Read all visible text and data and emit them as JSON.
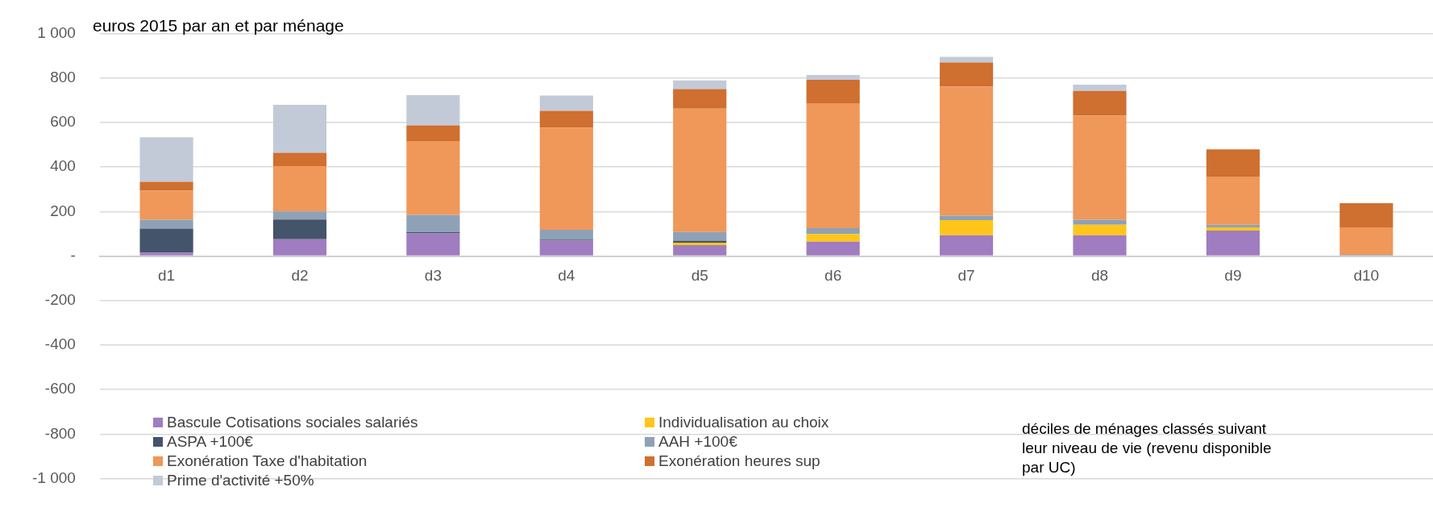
{
  "chart_data": {
    "type": "bar",
    "stacked": true,
    "ylabel": "euros 2015 par an et par ménage",
    "xlabel": "déciles de ménages classés suivant leur niveau de vie (revenu disponible par UC)",
    "categories": [
      "d1",
      "d2",
      "d3",
      "d4",
      "d5",
      "d6",
      "d7",
      "d8",
      "d9",
      "d10"
    ],
    "series": [
      {
        "name": "Bascule Cotisations sociales salariés",
        "color": "#a07cc0",
        "values": [
          15,
          75,
          101,
          69,
          49,
          64,
          93,
          93,
          114,
          0
        ]
      },
      {
        "name": "Individualisation au choix",
        "color": "#ffc519",
        "values": [
          0,
          0,
          0,
          0,
          11,
          35,
          68,
          47,
          15,
          0
        ]
      },
      {
        "name": "ASPA +100€",
        "color": "#44546a",
        "values": [
          108,
          89,
          6,
          4,
          9,
          0,
          0,
          0,
          0,
          0
        ]
      },
      {
        "name": "AAH +100€",
        "color": "#8fa1b6",
        "values": [
          40,
          36,
          78,
          45,
          39,
          26,
          20,
          23,
          11,
          5
        ]
      },
      {
        "name": "Exonération Taxe d'habitation",
        "color": "#f0975a",
        "values": [
          130,
          204,
          331,
          458,
          554,
          561,
          580,
          467,
          217,
          124
        ]
      },
      {
        "name": "Exonération heures sup",
        "color": "#cf6f30",
        "values": [
          40,
          60,
          71,
          76,
          88,
          105,
          108,
          112,
          122,
          108
        ]
      },
      {
        "name": "Prime d'activité +50%",
        "color": "#c2cad8",
        "values": [
          200,
          215,
          136,
          69,
          39,
          22,
          26,
          28,
          0,
          0
        ]
      }
    ],
    "ylim": [
      -1000,
      1000
    ],
    "yticks": [
      {
        "value": -1000,
        "label": "-1 000"
      },
      -800,
      -600,
      -400,
      -200,
      {
        "value": 0,
        "label": "-"
      },
      200,
      400,
      600,
      800,
      {
        "value": 1000,
        "label": "1 000"
      }
    ],
    "grid": "y",
    "legend": "bottom left"
  }
}
